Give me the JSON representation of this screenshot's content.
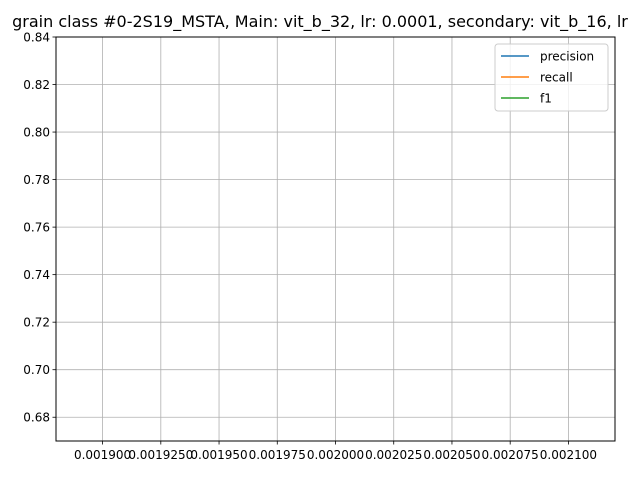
{
  "chart_data": {
    "type": "line",
    "title": "grain class #0-2S19_MSTA, Main: vit_b_32, lr: 0.0001, secondary: vit_b_16, lr",
    "xlabel": "",
    "ylabel": "",
    "xlim": [
      0.00188,
      0.00212
    ],
    "ylim": [
      0.67,
      0.84
    ],
    "x_ticks": [
      0.0019,
      0.001925,
      0.00195,
      0.001975,
      0.002,
      0.002025,
      0.00205,
      0.002075,
      0.0021
    ],
    "x_tick_labels": [
      "0.001900",
      "0.0019250",
      "0.001950",
      "0.001975",
      "0.002000",
      "0.002025",
      "0.002050",
      "0.002075",
      "0.002100"
    ],
    "y_ticks": [
      0.68,
      0.7,
      0.72,
      0.74,
      0.76,
      0.78,
      0.8,
      0.82,
      0.84
    ],
    "y_tick_labels": [
      "0.68",
      "0.70",
      "0.72",
      "0.74",
      "0.76",
      "0.78",
      "0.80",
      "0.82",
      "0.84"
    ],
    "grid": true,
    "legend_position": "top-right",
    "series": [
      {
        "name": "precision",
        "color": "#1f77b4",
        "x": [],
        "y": []
      },
      {
        "name": "recall",
        "color": "#ff7f0e",
        "x": [],
        "y": []
      },
      {
        "name": "f1",
        "color": "#2ca02c",
        "x": [],
        "y": []
      }
    ]
  }
}
